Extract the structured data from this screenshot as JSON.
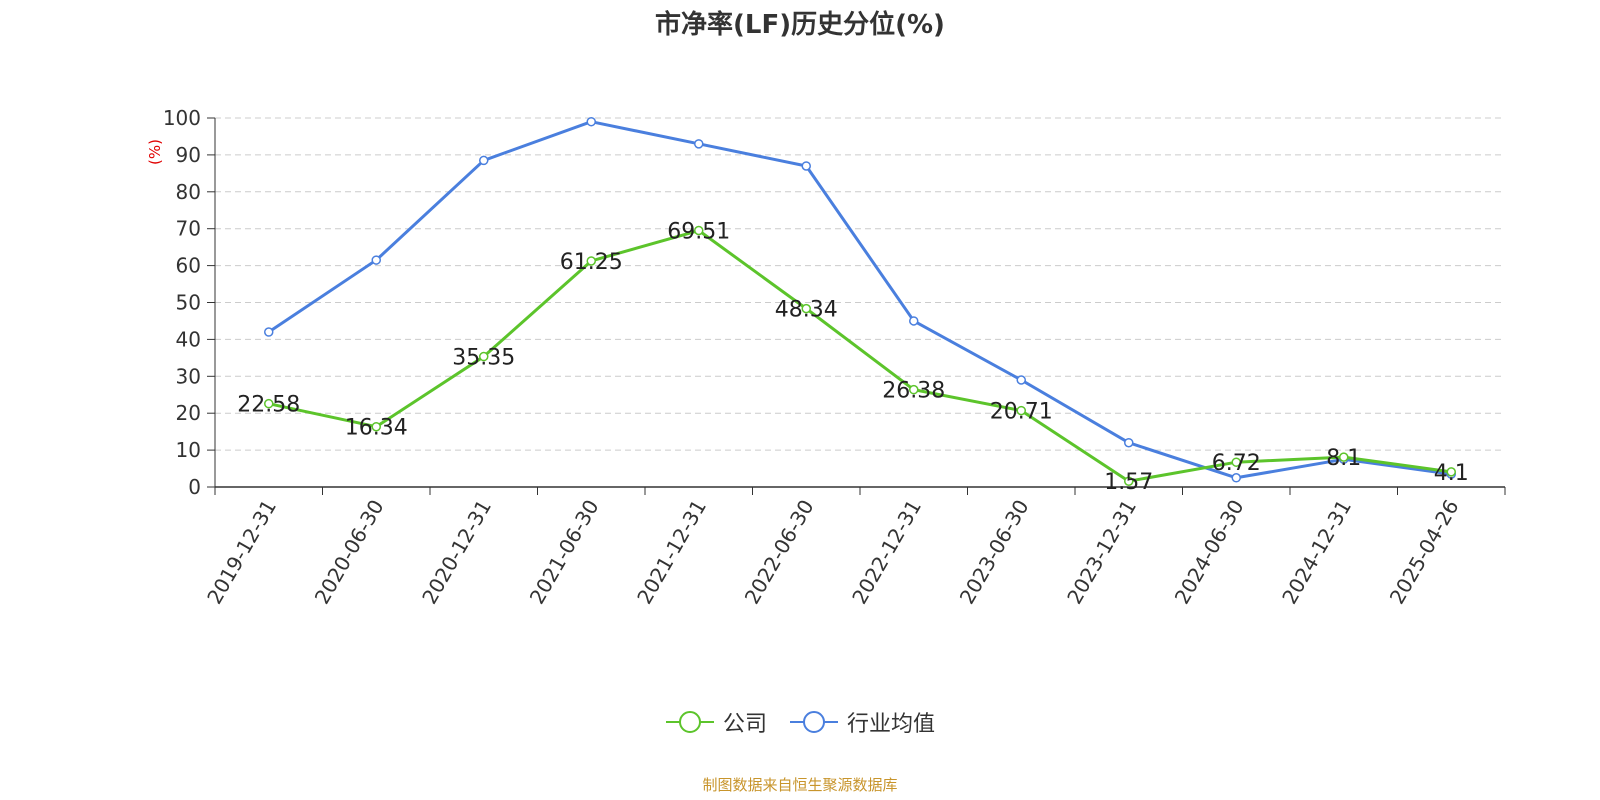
{
  "chart_data": {
    "type": "line",
    "title": "市净率(LF)历史分位(%)",
    "ylabel": "(%)",
    "xlabel": "",
    "ylim": [
      0,
      100
    ],
    "yticks": [
      0,
      10,
      20,
      30,
      40,
      50,
      60,
      70,
      80,
      90,
      100
    ],
    "grid": true,
    "legend_position": "bottom-center",
    "categories": [
      "2019-12-31",
      "2020-06-30",
      "2020-12-31",
      "2021-06-30",
      "2021-12-31",
      "2022-06-30",
      "2022-12-31",
      "2023-06-30",
      "2023-12-31",
      "2024-06-30",
      "2024-12-31",
      "2025-04-26"
    ],
    "series": [
      {
        "name": "公司",
        "color": "#5cc42b",
        "values": [
          22.58,
          16.34,
          35.35,
          61.25,
          69.51,
          48.34,
          26.38,
          20.71,
          1.57,
          6.72,
          8.1,
          4.1
        ],
        "data_labels": [
          "22.58",
          "16.34",
          "35.35",
          "61.25",
          "69.51",
          "48.34",
          "26.38",
          "20.71",
          "1.57",
          "6.72",
          "8.1",
          "4.1"
        ]
      },
      {
        "name": "行业均值",
        "color": "#4a7fde",
        "values": [
          42,
          61.5,
          88.5,
          99,
          93,
          87,
          45,
          29,
          12,
          2.5,
          7.5,
          3.5
        ]
      }
    ]
  },
  "source_text": "制图数据来自恒生聚源数据库"
}
